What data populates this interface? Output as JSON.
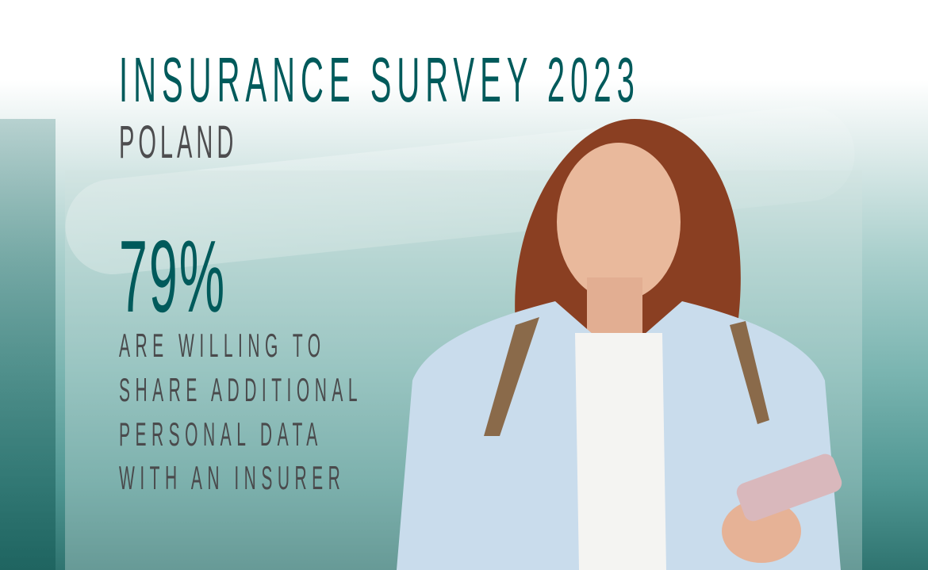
{
  "title": "INSURANCE SURVEY 2023",
  "subtitle": "POLAND",
  "stat": {
    "value": "79%",
    "description": [
      "ARE WILLING TO",
      "SHARE ADDITIONAL",
      "PERSONAL DATA",
      "WITH AN INSURER"
    ]
  },
  "colors": {
    "accent": "#005a5b",
    "text": "#4d4d4f"
  }
}
